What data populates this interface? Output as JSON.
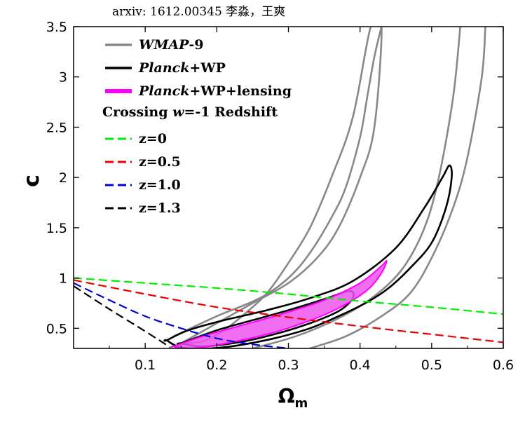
{
  "header": {
    "text": "arxiv: 1612.00345   李淼，王爽"
  },
  "chart_data": {
    "type": "line",
    "title": "",
    "xlabel": "Ω",
    "xlabel_sub": "m",
    "ylabel": "c",
    "xlim": [
      0.0,
      0.6
    ],
    "ylim": [
      0.3,
      3.5
    ],
    "xticks": [
      0.1,
      0.2,
      0.3,
      0.4,
      0.5,
      0.6
    ],
    "xtick_labels": [
      "0.1",
      "0.2",
      "0.3",
      "0.4",
      "0.5",
      "0.6"
    ],
    "yticks": [
      0.5,
      1.0,
      1.5,
      2.0,
      2.5,
      3.0,
      3.5
    ],
    "ytick_labels": [
      "0.5",
      "1",
      "1.5",
      "2",
      "2.5",
      "3",
      "3.5"
    ],
    "grid": false,
    "legend_position": "top-left",
    "colors": {
      "wmap": "#888888",
      "planck": "#000000",
      "lensing_fill": "#ee55ee",
      "lensing_edge": "#ff00ff",
      "z0": "#00ee00",
      "z05": "#ee0000",
      "z10": "#0000dd",
      "z13": "#000000"
    },
    "legend": {
      "entries": [
        {
          "key": "wmap",
          "label": "WMAP-9",
          "style": "solid",
          "color": "#888888",
          "italic_part": "WMAP",
          "rest": "-9"
        },
        {
          "key": "planck",
          "label": "Planck+WP",
          "style": "solid",
          "color": "#000000",
          "italic_part": "Planck",
          "rest": "+WP"
        },
        {
          "key": "lensing",
          "label": "Planck+WP+lensing",
          "style": "thick",
          "color": "#ff00ff",
          "italic_part": "Planck",
          "rest": "+WP+lensing"
        }
      ],
      "group_title": {
        "pre": "Crossing ",
        "italic": "w",
        "post": "=-1 Redshift"
      },
      "dashed_entries": [
        {
          "key": "z0",
          "label": "z=0",
          "color": "#00ee00"
        },
        {
          "key": "z05",
          "label": "z=0.5",
          "color": "#ee0000"
        },
        {
          "key": "z10",
          "label": "z=1.0",
          "color": "#0000dd"
        },
        {
          "key": "z13",
          "label": "z=1.3",
          "color": "#000000"
        }
      ]
    },
    "series": [
      {
        "name": "z=0",
        "style": "dashed",
        "color": "#00ee00",
        "x": [
          0.0,
          0.1,
          0.2,
          0.3,
          0.4,
          0.5,
          0.6
        ],
        "y": [
          1.0,
          0.95,
          0.9,
          0.84,
          0.77,
          0.71,
          0.64
        ]
      },
      {
        "name": "z=0.5",
        "style": "dashed",
        "color": "#ee0000",
        "x": [
          0.0,
          0.1,
          0.2,
          0.3,
          0.4,
          0.5,
          0.6
        ],
        "y": [
          0.98,
          0.84,
          0.71,
          0.61,
          0.52,
          0.44,
          0.36
        ]
      },
      {
        "name": "z=1.0",
        "style": "dashed",
        "color": "#0000dd",
        "x": [
          0.0,
          0.05,
          0.1,
          0.15,
          0.2,
          0.25,
          0.3
        ],
        "y": [
          0.95,
          0.78,
          0.62,
          0.5,
          0.4,
          0.34,
          0.3
        ]
      },
      {
        "name": "z=1.3",
        "style": "dashed",
        "color": "#000000",
        "x": [
          0.0,
          0.05,
          0.1,
          0.135
        ],
        "y": [
          0.92,
          0.69,
          0.47,
          0.31
        ]
      }
    ],
    "contours": [
      {
        "name": "WMAP-9 68%",
        "color": "#888888",
        "style": "closed",
        "x": [
          0.15,
          0.2,
          0.25,
          0.3,
          0.34,
          0.37,
          0.4,
          0.42,
          0.43,
          0.415,
          0.39,
          0.36,
          0.33,
          0.3,
          0.27,
          0.24,
          0.21,
          0.18,
          0.15
        ],
        "y": [
          0.35,
          0.55,
          0.75,
          0.95,
          1.2,
          1.5,
          2.0,
          2.5,
          3.5,
          3.5,
          2.6,
          2.0,
          1.5,
          1.15,
          0.85,
          0.65,
          0.48,
          0.37,
          0.35
        ]
      },
      {
        "name": "WMAP-9 95% left",
        "color": "#888888",
        "style": "open",
        "x": [
          0.14,
          0.2,
          0.26,
          0.3,
          0.33,
          0.36,
          0.38,
          0.4,
          0.41,
          0.42,
          0.43
        ],
        "y": [
          0.42,
          0.62,
          0.8,
          1.0,
          1.25,
          1.6,
          1.9,
          2.4,
          2.8,
          3.2,
          3.5
        ]
      },
      {
        "name": "WMAP-9 95% right",
        "color": "#888888",
        "style": "open",
        "x": [
          0.25,
          0.31,
          0.37,
          0.42,
          0.46,
          0.49,
          0.51,
          0.53,
          0.54
        ],
        "y": [
          0.3,
          0.42,
          0.6,
          0.82,
          1.1,
          1.5,
          2.0,
          2.8,
          3.5
        ]
      },
      {
        "name": "WMAP-9 95% outer",
        "color": "#888888",
        "style": "open",
        "x": [
          0.33,
          0.38,
          0.43,
          0.47,
          0.5,
          0.53,
          0.55,
          0.57,
          0.575
        ],
        "y": [
          0.3,
          0.42,
          0.62,
          0.85,
          1.2,
          1.7,
          2.2,
          3.0,
          3.5
        ]
      },
      {
        "name": "Planck+WP 95%",
        "color": "#000000",
        "style": "closed",
        "x": [
          0.13,
          0.16,
          0.21,
          0.27,
          0.33,
          0.39,
          0.45,
          0.49,
          0.515,
          0.525,
          0.528,
          0.52,
          0.5,
          0.47,
          0.44,
          0.41,
          0.37,
          0.33,
          0.28,
          0.23,
          0.19,
          0.15,
          0.13
        ],
        "y": [
          0.38,
          0.48,
          0.58,
          0.68,
          0.8,
          0.97,
          1.3,
          1.7,
          2.0,
          2.12,
          2.0,
          1.7,
          1.35,
          1.1,
          0.9,
          0.76,
          0.62,
          0.5,
          0.4,
          0.33,
          0.3,
          0.31,
          0.38
        ]
      },
      {
        "name": "Planck+WP 68%",
        "color": "#000000",
        "style": "closed",
        "x": [
          0.15,
          0.2,
          0.25,
          0.3,
          0.35,
          0.385,
          0.39,
          0.37,
          0.33,
          0.28,
          0.23,
          0.18,
          0.15
        ],
        "y": [
          0.35,
          0.48,
          0.58,
          0.68,
          0.79,
          0.87,
          0.8,
          0.67,
          0.55,
          0.44,
          0.36,
          0.32,
          0.35
        ]
      },
      {
        "name": "Planck+WP+lensing",
        "color": "#ff00ff",
        "style": "filled",
        "x": [
          0.14,
          0.18,
          0.23,
          0.29,
          0.35,
          0.4,
          0.43,
          0.437,
          0.43,
          0.41,
          0.37,
          0.32,
          0.27,
          0.22,
          0.18,
          0.15,
          0.14
        ],
        "y": [
          0.32,
          0.42,
          0.52,
          0.64,
          0.78,
          0.95,
          1.12,
          1.17,
          1.05,
          0.88,
          0.7,
          0.55,
          0.44,
          0.36,
          0.31,
          0.3,
          0.32
        ]
      }
    ]
  }
}
